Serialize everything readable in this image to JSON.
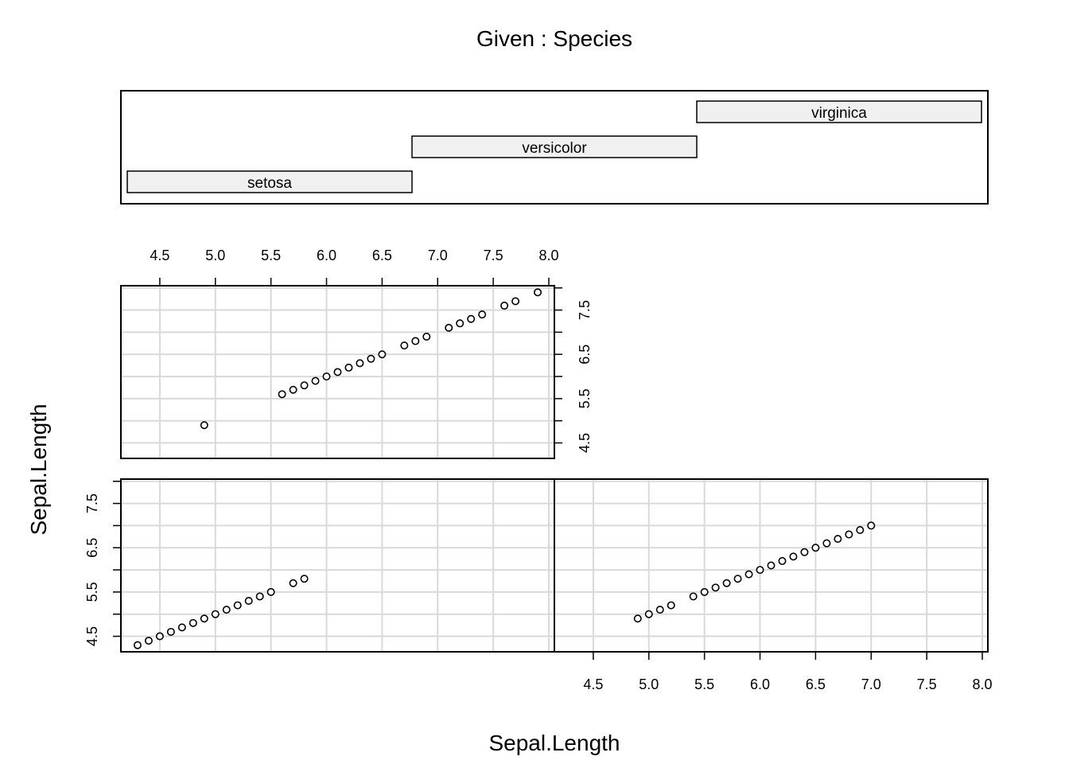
{
  "chart_data": {
    "type": "scatter",
    "title": "Given : Species",
    "xlabel": "Sepal.Length",
    "ylabel": "Sepal.Length",
    "xlim": [
      4.15,
      8.05
    ],
    "ylim": [
      4.15,
      8.05
    ],
    "x_ticks": [
      4.5,
      5.0,
      5.5,
      6.0,
      6.5,
      7.0,
      7.5,
      8.0
    ],
    "x_tick_labels": [
      "4.5",
      "5.0",
      "5.5",
      "6.0",
      "6.5",
      "7.0",
      "7.5",
      "8.0"
    ],
    "y_ticks": [
      4.5,
      5.5,
      6.5,
      7.5
    ],
    "y_tick_labels": [
      "4.5",
      "5.5",
      "6.5",
      "7.5"
    ],
    "grid": true,
    "point_style": "open-circle",
    "given": {
      "variable": "Species",
      "levels": [
        "setosa",
        "versicolor",
        "virginica"
      ]
    },
    "panels": [
      {
        "level": "setosa",
        "x": [
          4.3,
          4.4,
          4.5,
          4.6,
          4.7,
          4.8,
          4.9,
          5.0,
          5.1,
          5.2,
          5.3,
          5.4,
          5.5,
          5.7,
          5.8
        ],
        "y": [
          4.3,
          4.4,
          4.5,
          4.6,
          4.7,
          4.8,
          4.9,
          5.0,
          5.1,
          5.2,
          5.3,
          5.4,
          5.5,
          5.7,
          5.8
        ]
      },
      {
        "level": "versicolor",
        "x": [
          4.9,
          5.0,
          5.1,
          5.2,
          5.4,
          5.5,
          5.6,
          5.7,
          5.8,
          5.9,
          6.0,
          6.1,
          6.2,
          6.3,
          6.4,
          6.5,
          6.6,
          6.7,
          6.8,
          6.9,
          7.0
        ],
        "y": [
          4.9,
          5.0,
          5.1,
          5.2,
          5.4,
          5.5,
          5.6,
          5.7,
          5.8,
          5.9,
          6.0,
          6.1,
          6.2,
          6.3,
          6.4,
          6.5,
          6.6,
          6.7,
          6.8,
          6.9,
          7.0
        ]
      },
      {
        "level": "virginica",
        "x": [
          4.9,
          5.6,
          5.7,
          5.8,
          5.9,
          6.0,
          6.1,
          6.2,
          6.3,
          6.4,
          6.5,
          6.7,
          6.8,
          6.9,
          7.1,
          7.2,
          7.3,
          7.4,
          7.6,
          7.7,
          7.9
        ],
        "y": [
          4.9,
          5.6,
          5.7,
          5.8,
          5.9,
          6.0,
          6.1,
          6.2,
          6.3,
          6.4,
          6.5,
          6.7,
          6.8,
          6.9,
          7.1,
          7.2,
          7.3,
          7.4,
          7.6,
          7.7,
          7.9
        ]
      }
    ]
  }
}
